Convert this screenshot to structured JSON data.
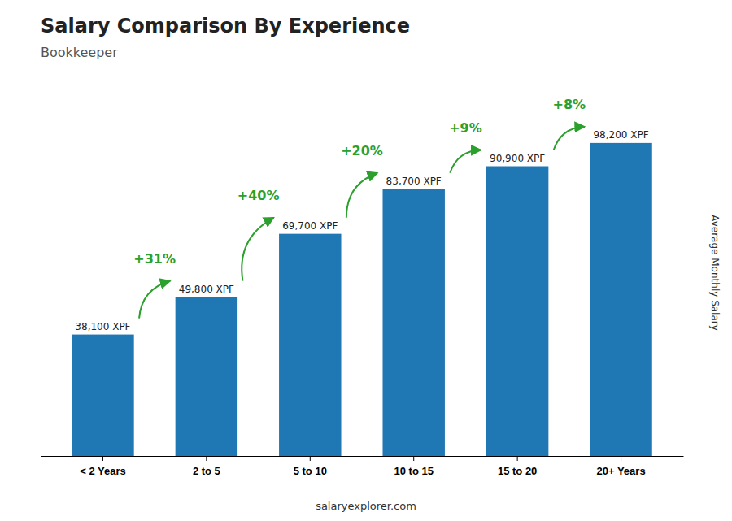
{
  "chart_data": {
    "type": "bar",
    "title": "Salary Comparison By Experience",
    "subtitle": "Bookkeeper",
    "ylabel": "Average Monthly Salary",
    "footer": "salaryexplorer.com",
    "categories": [
      "< 2 Years",
      "2 to 5",
      "5 to 10",
      "10 to 15",
      "15 to 20",
      "20+ Years"
    ],
    "values": [
      38100,
      49800,
      69700,
      83700,
      90900,
      98200
    ],
    "value_labels": [
      "38,100 XPF",
      "49,800 XPF",
      "69,700 XPF",
      "83,700 XPF",
      "90,900 XPF",
      "98,200 XPF"
    ],
    "data_labels": true,
    "annotations": [
      "+31%",
      "+40%",
      "+20%",
      "+9%",
      "+8%"
    ],
    "ylim": [
      0,
      115000
    ],
    "grid": false,
    "tick_labels": "x"
  }
}
